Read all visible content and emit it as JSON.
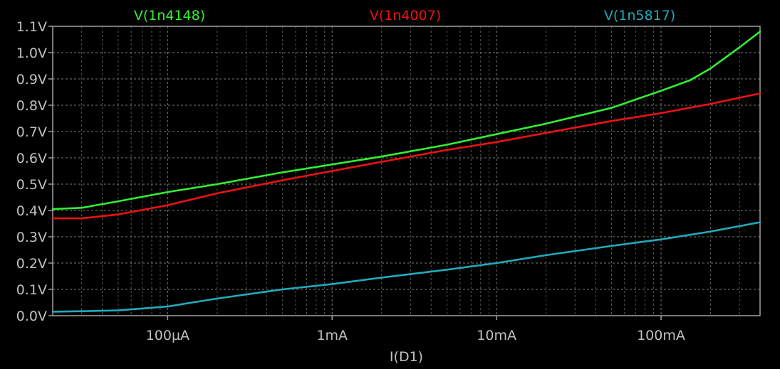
{
  "chart_data": {
    "type": "line",
    "title": "",
    "xlabel": "I(D1)",
    "ylabel": "",
    "x_scale": "log",
    "xlim": [
      2e-05,
      0.4
    ],
    "ylim": [
      0.0,
      1.1
    ],
    "grid": true,
    "legend_position": "top",
    "x_ticks": [
      {
        "value": 0.0001,
        "label": "100µA"
      },
      {
        "value": 0.001,
        "label": "1mA"
      },
      {
        "value": 0.01,
        "label": "10mA"
      },
      {
        "value": 0.1,
        "label": "100mA"
      }
    ],
    "y_ticks": [
      {
        "value": 0.0,
        "label": "0.0V"
      },
      {
        "value": 0.1,
        "label": "0.1V"
      },
      {
        "value": 0.2,
        "label": "0.2V"
      },
      {
        "value": 0.3,
        "label": "0.3V"
      },
      {
        "value": 0.4,
        "label": "0.4V"
      },
      {
        "value": 0.5,
        "label": "0.5V"
      },
      {
        "value": 0.6,
        "label": "0.6V"
      },
      {
        "value": 0.7,
        "label": "0.7V"
      },
      {
        "value": 0.8,
        "label": "0.8V"
      },
      {
        "value": 0.9,
        "label": "0.9V"
      },
      {
        "value": 1.0,
        "label": "1.0V"
      },
      {
        "value": 1.1,
        "label": "1.1V"
      }
    ],
    "series": [
      {
        "name": "V(1n4148)",
        "color": "#33ee33",
        "x": [
          2e-05,
          3e-05,
          5e-05,
          0.0001,
          0.0002,
          0.0005,
          0.001,
          0.002,
          0.005,
          0.01,
          0.02,
          0.05,
          0.1,
          0.15,
          0.2,
          0.3,
          0.4
        ],
        "y": [
          0.405,
          0.41,
          0.435,
          0.47,
          0.5,
          0.545,
          0.575,
          0.605,
          0.65,
          0.69,
          0.73,
          0.79,
          0.855,
          0.895,
          0.94,
          1.02,
          1.08
        ]
      },
      {
        "name": "V(1n4007)",
        "color": "#ee1111",
        "x": [
          2e-05,
          3e-05,
          5e-05,
          0.0001,
          0.0002,
          0.0005,
          0.001,
          0.002,
          0.005,
          0.01,
          0.02,
          0.05,
          0.1,
          0.2,
          0.4
        ],
        "y": [
          0.37,
          0.37,
          0.385,
          0.42,
          0.465,
          0.515,
          0.55,
          0.585,
          0.63,
          0.66,
          0.695,
          0.74,
          0.77,
          0.805,
          0.845
        ]
      },
      {
        "name": "V(1n5817)",
        "color": "#22aabb",
        "x": [
          2e-05,
          3e-05,
          5e-05,
          0.0001,
          0.0002,
          0.0005,
          0.001,
          0.002,
          0.005,
          0.01,
          0.02,
          0.05,
          0.1,
          0.2,
          0.4
        ],
        "y": [
          0.015,
          0.017,
          0.02,
          0.035,
          0.065,
          0.1,
          0.12,
          0.145,
          0.175,
          0.2,
          0.23,
          0.265,
          0.29,
          0.32,
          0.355
        ]
      }
    ]
  }
}
